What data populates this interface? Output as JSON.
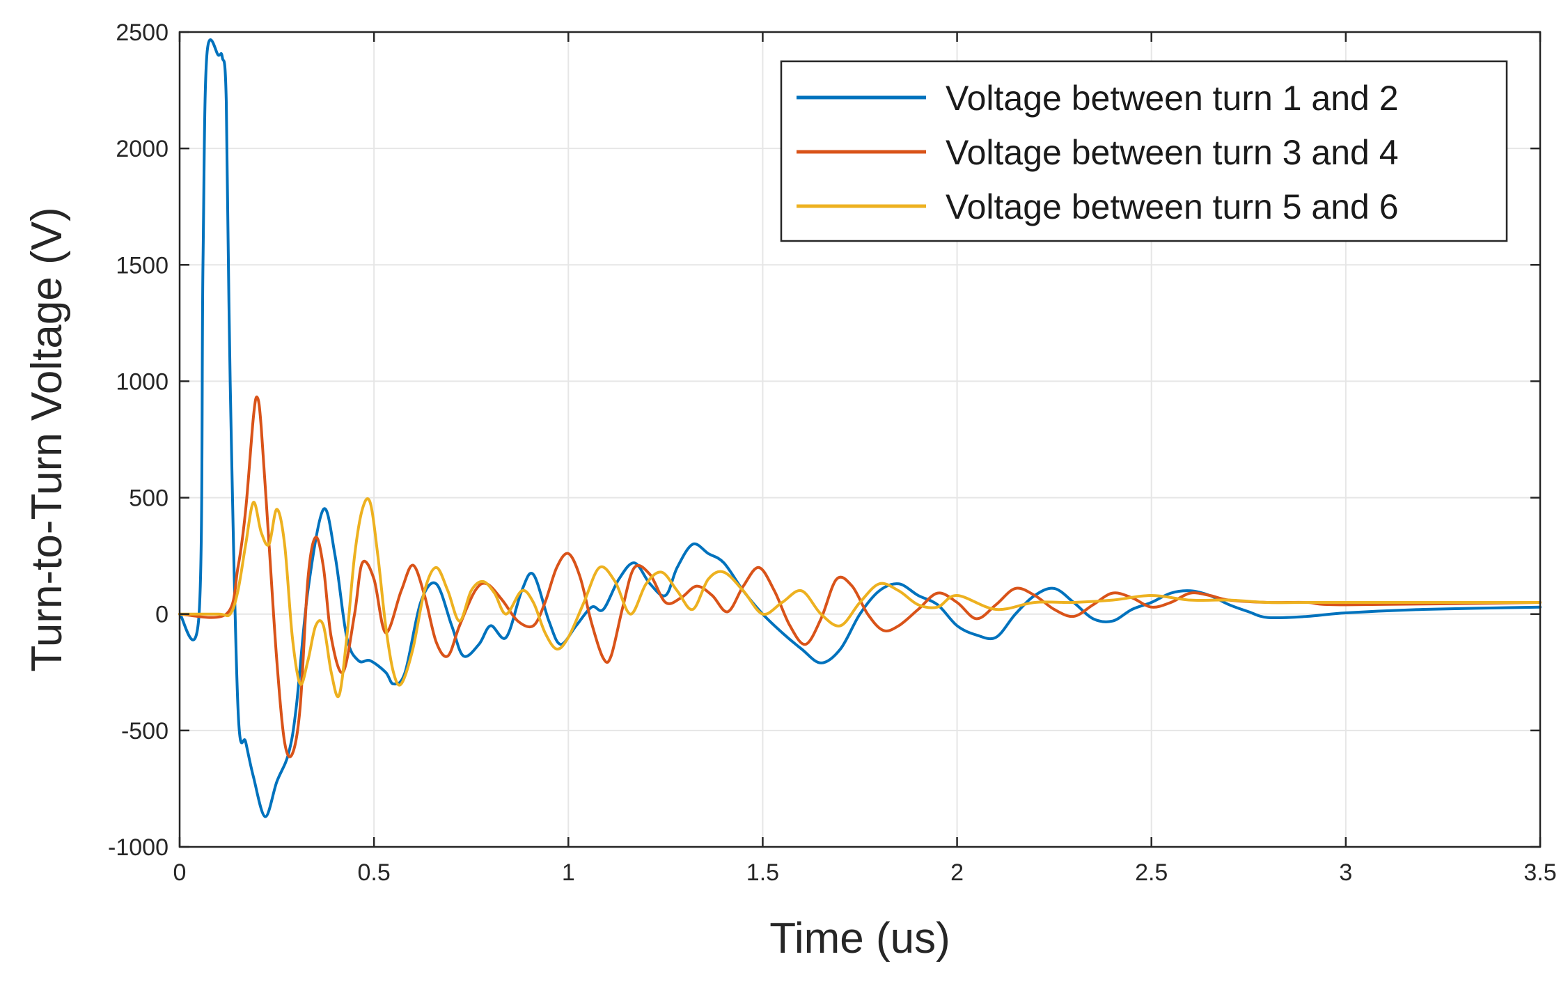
{
  "chart_data": {
    "type": "line",
    "title": "",
    "xlabel": "Time (us)",
    "ylabel": "Turn-to-Turn Voltage (V)",
    "xlim": [
      0,
      3.5
    ],
    "ylim": [
      -1000,
      2500
    ],
    "xticks": [
      0,
      0.5,
      1,
      1.5,
      2,
      2.5,
      3,
      3.5
    ],
    "xtick_labels": [
      "0",
      "0.5",
      "1",
      "1.5",
      "2",
      "2.5",
      "3",
      "3.5"
    ],
    "yticks": [
      -1000,
      -500,
      0,
      500,
      1000,
      1500,
      2000,
      2500
    ],
    "ytick_labels": [
      "-1000",
      "-500",
      "0",
      "500",
      "1000",
      "1500",
      "2000",
      "2500"
    ],
    "grid": true,
    "legend_position": "top-right",
    "series": [
      {
        "name": "Voltage between turn 1 and 2",
        "color": "#0072BD",
        "x": [
          0,
          0.05,
          0.06,
          0.07,
          0.1,
          0.11,
          0.12,
          0.13,
          0.15,
          0.17,
          0.19,
          0.22,
          0.25,
          0.28,
          0.3,
          0.33,
          0.37,
          0.4,
          0.43,
          0.46,
          0.49,
          0.53,
          0.55,
          0.58,
          0.62,
          0.66,
          0.7,
          0.73,
          0.77,
          0.8,
          0.84,
          0.88,
          0.91,
          0.95,
          0.98,
          1.02,
          1.06,
          1.09,
          1.13,
          1.17,
          1.21,
          1.25,
          1.28,
          1.32,
          1.36,
          1.4,
          1.45,
          1.5,
          1.55,
          1.6,
          1.65,
          1.7,
          1.75,
          1.8,
          1.85,
          1.9,
          1.95,
          2.0,
          2.05,
          2.1,
          2.15,
          2.2,
          2.25,
          2.3,
          2.35,
          2.4,
          2.45,
          2.5,
          2.55,
          2.6,
          2.65,
          2.7,
          2.75,
          2.8,
          2.9,
          3.0,
          3.2,
          3.5
        ],
        "y": [
          0,
          0,
          1500,
          2400,
          2400,
          2390,
          2200,
          1000,
          -400,
          -550,
          -700,
          -870,
          -720,
          -600,
          -400,
          100,
          450,
          250,
          -100,
          -200,
          -200,
          -250,
          -300,
          -250,
          50,
          130,
          -50,
          -180,
          -130,
          -50,
          -100,
          100,
          170,
          -30,
          -130,
          -50,
          30,
          20,
          150,
          220,
          130,
          80,
          200,
          300,
          260,
          220,
          100,
          0,
          -80,
          -150,
          -210,
          -150,
          0,
          100,
          130,
          80,
          40,
          -50,
          -90,
          -100,
          0,
          80,
          110,
          50,
          -20,
          -30,
          20,
          50,
          90,
          100,
          80,
          40,
          10,
          -15,
          -10,
          5,
          20,
          30
        ]
      },
      {
        "name": "Voltage between turn 3 and 4",
        "color": "#D95319",
        "x": [
          0,
          0.12,
          0.15,
          0.17,
          0.19,
          0.2,
          0.21,
          0.23,
          0.25,
          0.27,
          0.29,
          0.31,
          0.33,
          0.35,
          0.37,
          0.39,
          0.42,
          0.45,
          0.47,
          0.5,
          0.53,
          0.57,
          0.6,
          0.63,
          0.66,
          0.69,
          0.72,
          0.76,
          0.79,
          0.83,
          0.87,
          0.91,
          0.94,
          0.97,
          1.0,
          1.03,
          1.06,
          1.09,
          1.11,
          1.14,
          1.17,
          1.21,
          1.25,
          1.29,
          1.33,
          1.37,
          1.41,
          1.45,
          1.49,
          1.53,
          1.57,
          1.61,
          1.65,
          1.69,
          1.73,
          1.77,
          1.81,
          1.85,
          1.9,
          1.95,
          2.0,
          2.05,
          2.1,
          2.15,
          2.2,
          2.25,
          2.3,
          2.35,
          2.4,
          2.45,
          2.5,
          2.55,
          2.6,
          2.65,
          2.7,
          2.8,
          2.9,
          3.0,
          3.5
        ],
        "y": [
          0,
          0,
          200,
          450,
          850,
          930,
          800,
          300,
          -200,
          -550,
          -600,
          -400,
          150,
          330,
          200,
          -100,
          -250,
          0,
          220,
          150,
          -80,
          100,
          210,
          80,
          -120,
          -180,
          -50,
          100,
          130,
          60,
          -30,
          -50,
          50,
          200,
          260,
          160,
          -40,
          -190,
          -180,
          30,
          200,
          170,
          50,
          70,
          120,
          80,
          10,
          120,
          200,
          100,
          -50,
          -130,
          -20,
          150,
          120,
          0,
          -70,
          -50,
          20,
          90,
          50,
          -20,
          40,
          110,
          80,
          20,
          -10,
          40,
          90,
          70,
          30,
          50,
          90,
          80,
          60,
          50,
          50,
          40,
          50
        ]
      },
      {
        "name": "Voltage between turn 5 and 6",
        "color": "#EDB120",
        "x": [
          0,
          0.1,
          0.13,
          0.15,
          0.17,
          0.19,
          0.21,
          0.23,
          0.25,
          0.27,
          0.29,
          0.31,
          0.33,
          0.35,
          0.37,
          0.39,
          0.41,
          0.43,
          0.45,
          0.47,
          0.49,
          0.51,
          0.53,
          0.55,
          0.57,
          0.6,
          0.63,
          0.66,
          0.69,
          0.72,
          0.75,
          0.78,
          0.81,
          0.84,
          0.88,
          0.91,
          0.94,
          0.97,
          1.0,
          1.04,
          1.08,
          1.12,
          1.16,
          1.2,
          1.24,
          1.28,
          1.32,
          1.36,
          1.4,
          1.45,
          1.5,
          1.55,
          1.6,
          1.65,
          1.7,
          1.75,
          1.8,
          1.85,
          1.9,
          1.95,
          2.0,
          2.1,
          2.2,
          2.3,
          2.4,
          2.5,
          2.6,
          2.7,
          2.8,
          2.9,
          3.0,
          3.2,
          3.5
        ],
        "y": [
          0,
          0,
          0,
          100,
          300,
          480,
          350,
          300,
          450,
          300,
          -100,
          -300,
          -200,
          -50,
          -50,
          -250,
          -350,
          -100,
          250,
          450,
          480,
          250,
          -50,
          -250,
          -300,
          -150,
          100,
          200,
          100,
          -30,
          100,
          140,
          90,
          0,
          100,
          50,
          -80,
          -150,
          -100,
          50,
          200,
          140,
          0,
          130,
          180,
          100,
          20,
          150,
          180,
          100,
          0,
          50,
          100,
          0,
          -50,
          50,
          130,
          100,
          40,
          30,
          80,
          20,
          50,
          50,
          60,
          80,
          60,
          60,
          50,
          50,
          50,
          50,
          50
        ]
      }
    ]
  }
}
